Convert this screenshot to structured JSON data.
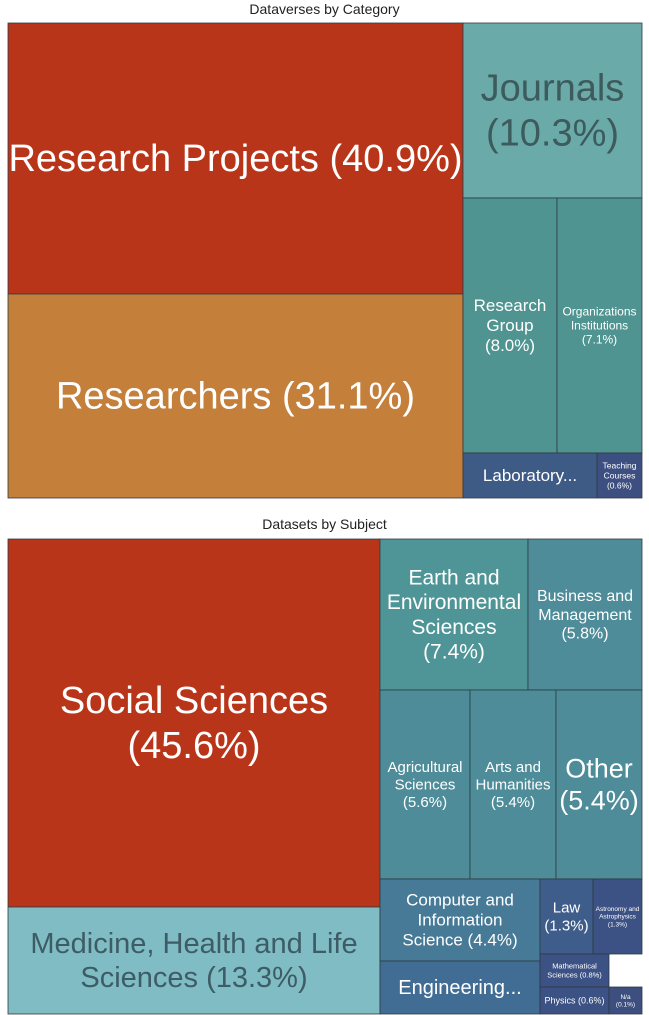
{
  "chart_data": [
    {
      "type": "treemap",
      "title": "Dataverses by Category",
      "items": [
        {
          "name": "Research Projects",
          "label": "Research Projects (40.9%)",
          "value": 40.9,
          "color": "#b9351a"
        },
        {
          "name": "Researchers",
          "label": "Researchers (31.1%)",
          "value": 31.1,
          "color": "#c47f3b"
        },
        {
          "name": "Journals",
          "label": "Journals (10.3%)",
          "value": 10.3,
          "color": "#6aaaa9"
        },
        {
          "name": "Research Group",
          "label": "Research Group (8.0%)",
          "value": 8.0,
          "color": "#4f9490"
        },
        {
          "name": "Organizations Institutions",
          "label": "Organizations Institutions (7.1%)",
          "value": 7.1,
          "color": "#4f9490"
        },
        {
          "name": "Laboratory",
          "label": "Laboratory...",
          "value": 2.0,
          "color": "#3e5b86"
        },
        {
          "name": "Teaching Courses",
          "label": "Teaching Courses (0.6%)",
          "value": 0.6,
          "color": "#3d4f80"
        }
      ]
    },
    {
      "type": "treemap",
      "title": "Datasets by Subject",
      "items": [
        {
          "name": "Social Sciences",
          "label": "Social Sciences (45.6%)",
          "value": 45.6,
          "color": "#b9351a"
        },
        {
          "name": "Medicine, Health and Life Sciences",
          "label": "Medicine, Health and Life Sciences (13.3%)",
          "value": 13.3,
          "color": "#7fbcc3"
        },
        {
          "name": "Earth and Environmental Sciences",
          "label": "Earth and Environmental Sciences (7.4%)",
          "value": 7.4,
          "color": "#4f9597"
        },
        {
          "name": "Business and Management",
          "label": "Business and Management (5.8%)",
          "value": 5.8,
          "color": "#4d8c98"
        },
        {
          "name": "Agricultural Sciences",
          "label": "Agricultural Sciences (5.6%)",
          "value": 5.6,
          "color": "#4d8c98"
        },
        {
          "name": "Arts and Humanities",
          "label": "Arts and Humanities (5.4%)",
          "value": 5.4,
          "color": "#4d8c98"
        },
        {
          "name": "Other",
          "label": "Other (5.4%)",
          "value": 5.4,
          "color": "#4d8c98"
        },
        {
          "name": "Computer and Information Science",
          "label": "Computer and Information Science (4.4%)",
          "value": 4.4,
          "color": "#477a96"
        },
        {
          "name": "Engineering",
          "label": "Engineering...",
          "value": 3.3,
          "color": "#416c93"
        },
        {
          "name": "Law",
          "label": "Law (1.3%)",
          "value": 1.3,
          "color": "#3f5d8b"
        },
        {
          "name": "Astronomy and Astrophysics",
          "label": "Astronomy and Astrophysics (1.3%)",
          "value": 1.3,
          "color": "#3c5184"
        },
        {
          "name": "Mathematical Sciences",
          "label": "Mathematical Sciences (0.8%)",
          "value": 0.8,
          "color": "#3c5184"
        },
        {
          "name": "Physics",
          "label": "Physics (0.6%)",
          "value": 0.6,
          "color": "#3c5184"
        },
        {
          "name": "N/a",
          "label": "N/a (0.1%)",
          "value": 0.1,
          "color": "#3c4f7e"
        }
      ]
    }
  ]
}
